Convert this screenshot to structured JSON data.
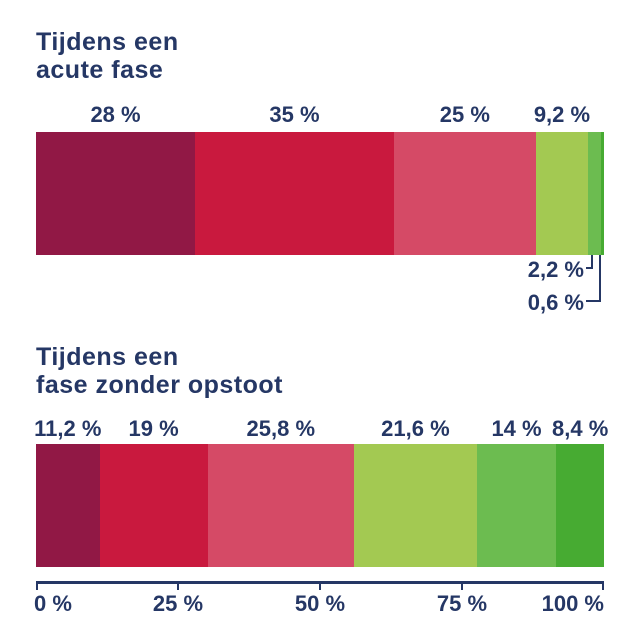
{
  "page": {
    "background": "#ffffff",
    "text_color": "#253765"
  },
  "palette": {
    "maroon": "#911845",
    "crimson": "#C9193E",
    "rose": "#D54A66",
    "yellowgreen": "#A3C952",
    "midgreen": "#6CBC50",
    "green": "#47AB32"
  },
  "chart_data": {
    "type": "bar",
    "subtype": "horizontal-stacked-100-percent",
    "unit": "%",
    "decimal_separator": ",",
    "grid": false,
    "legend": "none",
    "charts": [
      {
        "title": "Tijdens een\nacute fase",
        "segments": [
          {
            "value": 28,
            "label": "28 %",
            "color": "maroon",
            "label_position": "above"
          },
          {
            "value": 35,
            "label": "35 %",
            "color": "crimson",
            "label_position": "above"
          },
          {
            "value": 25,
            "label": "25 %",
            "color": "rose",
            "label_position": "above"
          },
          {
            "value": 9.2,
            "label": "9,2 %",
            "color": "yellowgreen",
            "label_position": "above"
          },
          {
            "value": 2.2,
            "label": "2,2 %",
            "color": "midgreen",
            "label_position": "callout-below"
          },
          {
            "value": 0.6,
            "label": "0,6 %",
            "color": "green",
            "label_position": "callout-below"
          }
        ]
      },
      {
        "title": "Tijdens een\nfase zonder opstoot",
        "segments": [
          {
            "value": 11.2,
            "label": "11,2 %",
            "color": "maroon",
            "label_position": "above"
          },
          {
            "value": 19,
            "label": "19 %",
            "color": "crimson",
            "label_position": "above"
          },
          {
            "value": 25.8,
            "label": "25,8 %",
            "color": "rose",
            "label_position": "above"
          },
          {
            "value": 21.6,
            "label": "21,6 %",
            "color": "yellowgreen",
            "label_position": "above"
          },
          {
            "value": 14,
            "label": "14 %",
            "color": "midgreen",
            "label_position": "above"
          },
          {
            "value": 8.4,
            "label": "8,4 %",
            "color": "green",
            "label_position": "above"
          }
        ]
      }
    ],
    "x_axis": {
      "range": [
        0,
        100
      ],
      "ticks": [
        {
          "pos": 0,
          "label": "0 %",
          "align": "left"
        },
        {
          "pos": 25,
          "label": "25 %",
          "align": "center"
        },
        {
          "pos": 50,
          "label": "50 %",
          "align": "center"
        },
        {
          "pos": 75,
          "label": "75 %",
          "align": "center"
        },
        {
          "pos": 100,
          "label": "100 %",
          "align": "right"
        }
      ]
    }
  }
}
